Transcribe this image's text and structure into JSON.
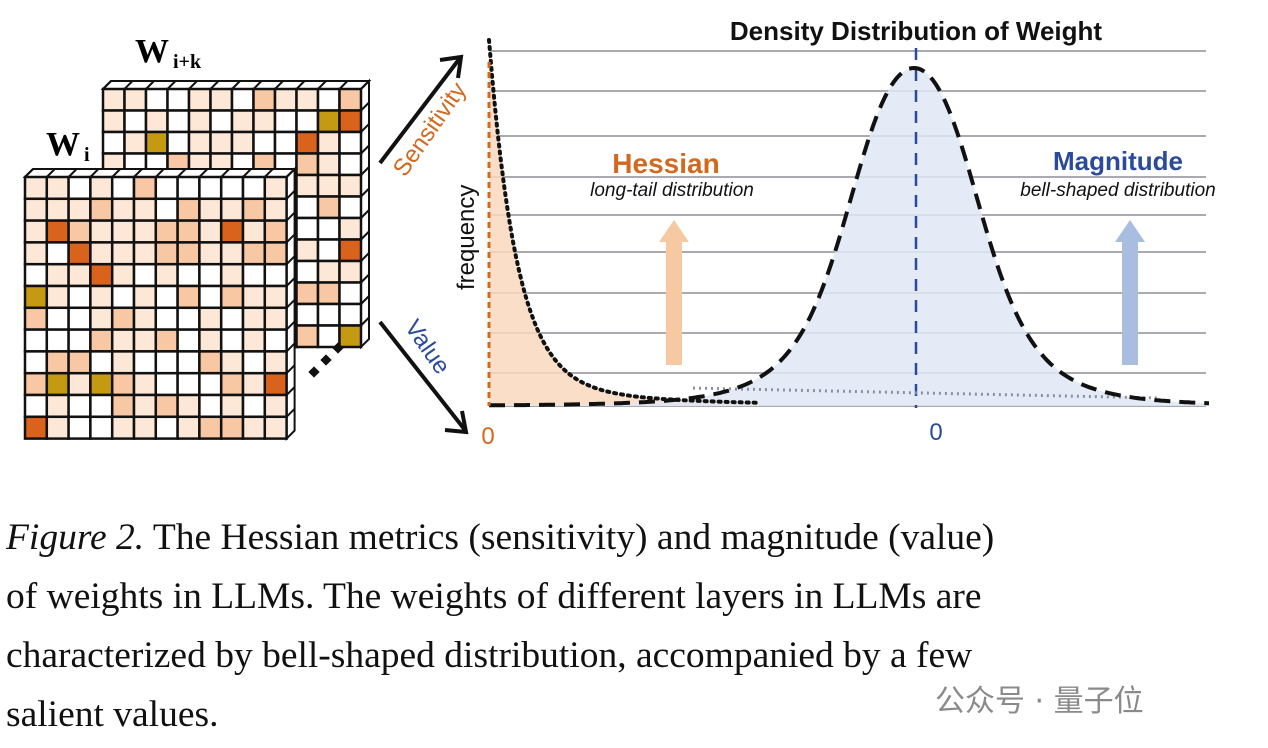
{
  "matrices": {
    "front_label": "W",
    "front_sub": "i",
    "back_label": "W",
    "back_sub": "i+k",
    "ellipsis": "..."
  },
  "arrows": {
    "up_label": "Sensitivity",
    "down_label": "Value"
  },
  "colors": {
    "hessian": "#d2691e",
    "magnitude": "#2a4b9b",
    "hessian_fill": "#f9d8bd",
    "magnitude_fill": "#dfe7f5",
    "cell_light": "#fde8d8",
    "cell_mid": "#f8c8a4",
    "cell_dark": "#d9621c",
    "cell_olive": "#c49a12"
  },
  "chart_data": {
    "type": "area",
    "title": "Density Distribution of Weight",
    "ylabel": "frequency",
    "grid": true,
    "x_ticks": [
      {
        "label": "0",
        "series": "Hessian"
      },
      {
        "label": "0",
        "series": "Magnitude"
      }
    ],
    "series": [
      {
        "name": "Hessian",
        "subtitle": "long-tail distribution",
        "shape": "long-tail",
        "style": "dotted"
      },
      {
        "name": "Magnitude",
        "subtitle": "bell-shaped distribution",
        "shape": "bell",
        "style": "dashed"
      }
    ]
  },
  "caption": {
    "label": "Figure 2.",
    "line1": " The Hessian metrics (sensitivity) and magnitude (value)",
    "line2": "of weights in LLMs. The weights of different layers in LLMs are",
    "line3": "characterized by bell-shaped distribution, accompanied by a few",
    "line4": "salient values."
  },
  "watermark": "公众号 · 量子位"
}
